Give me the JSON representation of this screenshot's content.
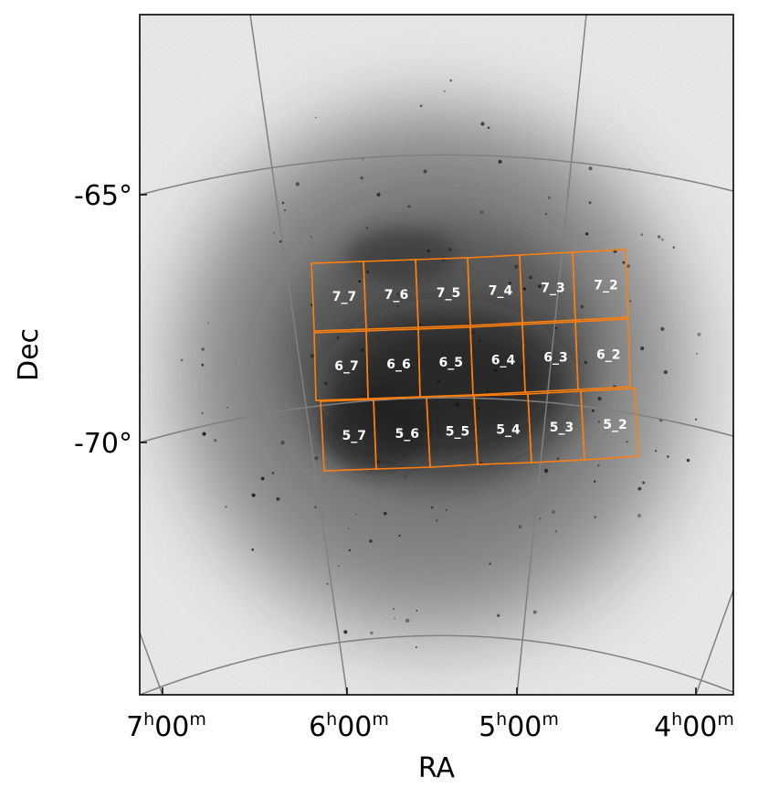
{
  "map": {
    "x_axis_label": "RA",
    "y_axis_label": "Dec",
    "ra_ticks": [
      {
        "h": "7",
        "m": "00"
      },
      {
        "h": "6",
        "m": "00"
      },
      {
        "h": "5",
        "m": "00"
      },
      {
        "h": "4",
        "m": "00"
      }
    ],
    "dec_ticks": [
      "-65°",
      "-70°"
    ],
    "grid": true,
    "background": "grayscale sky density map",
    "colors": {
      "field_outline": "#ff7f0e",
      "grid_line": "#808080",
      "field_label": "#ffffff"
    }
  },
  "fields": {
    "row7": [
      "7_7",
      "7_6",
      "7_5",
      "7_4",
      "7_3",
      "7_2"
    ],
    "row6": [
      "6_7",
      "6_6",
      "6_5",
      "6_4",
      "6_3",
      "6_2"
    ],
    "row5": [
      "5_7",
      "5_6",
      "5_5",
      "5_4",
      "5_3",
      "5_2"
    ]
  }
}
